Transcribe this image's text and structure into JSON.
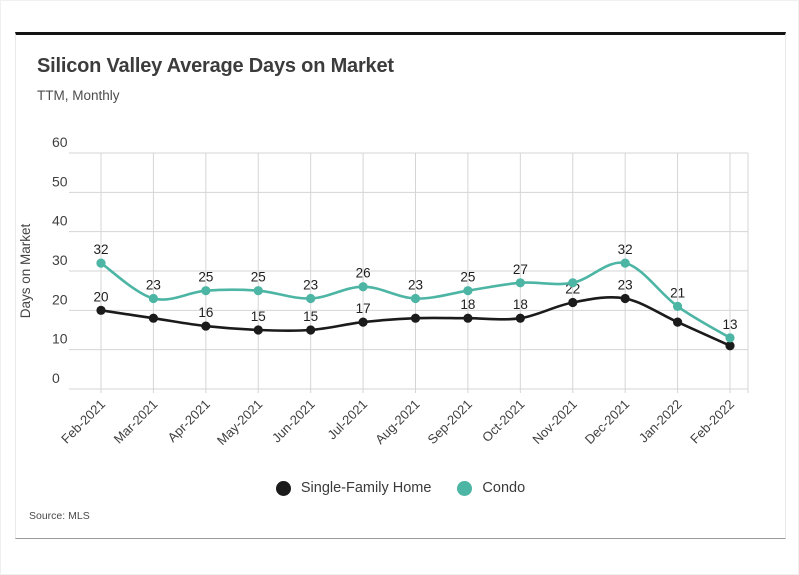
{
  "card": {
    "title": "Silicon Valley Average Days on Market",
    "subtitle": "TTM, Monthly",
    "source": "Source:  MLS"
  },
  "chart_data": {
    "type": "line",
    "title": "Silicon Valley Average Days on Market",
    "subtitle": "TTM, Monthly",
    "ylabel": "Days on Market",
    "xlabel": "",
    "ylim": [
      0,
      60
    ],
    "ytick_step": 10,
    "ytick_labels": [
      "0",
      "10",
      "20",
      "30",
      "40",
      "50",
      "60"
    ],
    "grid": true,
    "legend_position": "bottom",
    "source": "Source:  MLS",
    "categories": [
      "Feb-2021",
      "Mar-2021",
      "Apr-2021",
      "May-2021",
      "Jun-2021",
      "Jul-2021",
      "Aug-2021",
      "Sep-2021",
      "Oct-2021",
      "Nov-2021",
      "Dec-2021",
      "Jan-2022",
      "Feb-2022"
    ],
    "series": [
      {
        "name": "Single-Family Home",
        "color": "#1b1b1b",
        "values": [
          20,
          18,
          16,
          15,
          15,
          17,
          18,
          18,
          18,
          22,
          23,
          17,
          11
        ],
        "point_labels": [
          "20",
          null,
          "16",
          "15",
          "15",
          "17",
          null,
          "18",
          "18",
          "22",
          "23",
          null,
          null
        ]
      },
      {
        "name": "Condo",
        "color": "#4cb5a4",
        "values": [
          32,
          23,
          25,
          25,
          23,
          26,
          23,
          25,
          27,
          27,
          32,
          21,
          13
        ],
        "point_labels": [
          "32",
          "23",
          "25",
          "25",
          "23",
          "26",
          "23",
          "25",
          "27",
          null,
          "32",
          "21",
          "13"
        ]
      }
    ]
  },
  "colors": {
    "accent_teal": "#4cb5a4",
    "series_black": "#1b1b1b",
    "gridline": "#d5d5d5",
    "tick_text": "#3f3f3f",
    "data_label_text": "#1f1f1f"
  }
}
